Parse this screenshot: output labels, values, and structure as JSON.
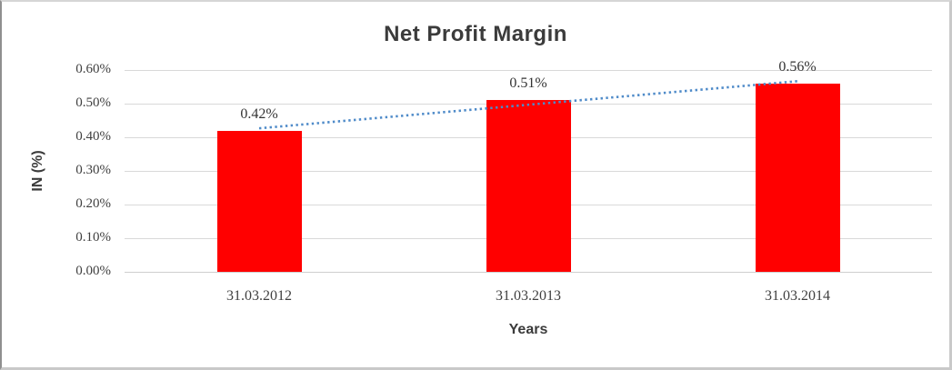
{
  "chart_data": {
    "type": "bar",
    "title": "Net Profit Margin",
    "ylabel": "IN (%)",
    "xlabel": "Years",
    "categories": [
      "31.03.2012",
      "31.03.2013",
      "31.03.2014"
    ],
    "values": [
      0.42,
      0.51,
      0.56
    ],
    "value_labels": [
      "0.42%",
      "0.51%",
      "0.56%"
    ],
    "y_tick_labels": [
      "0.00%",
      "0.10%",
      "0.20%",
      "0.30%",
      "0.40%",
      "0.50%",
      "0.60%"
    ],
    "y_tick_step": 0.1,
    "ylim": [
      0,
      0.6
    ],
    "grid": "horizontal",
    "legend": "none",
    "trendline": {
      "type": "linear",
      "style": "dotted"
    },
    "colors": {
      "bar": "#FF0000",
      "trendline": "#4F8BC9",
      "gridline": "#D9D9D9",
      "axis_line": "#CFCFCF",
      "title_text": "#3B3B3B",
      "tick_text": "#404040"
    }
  }
}
